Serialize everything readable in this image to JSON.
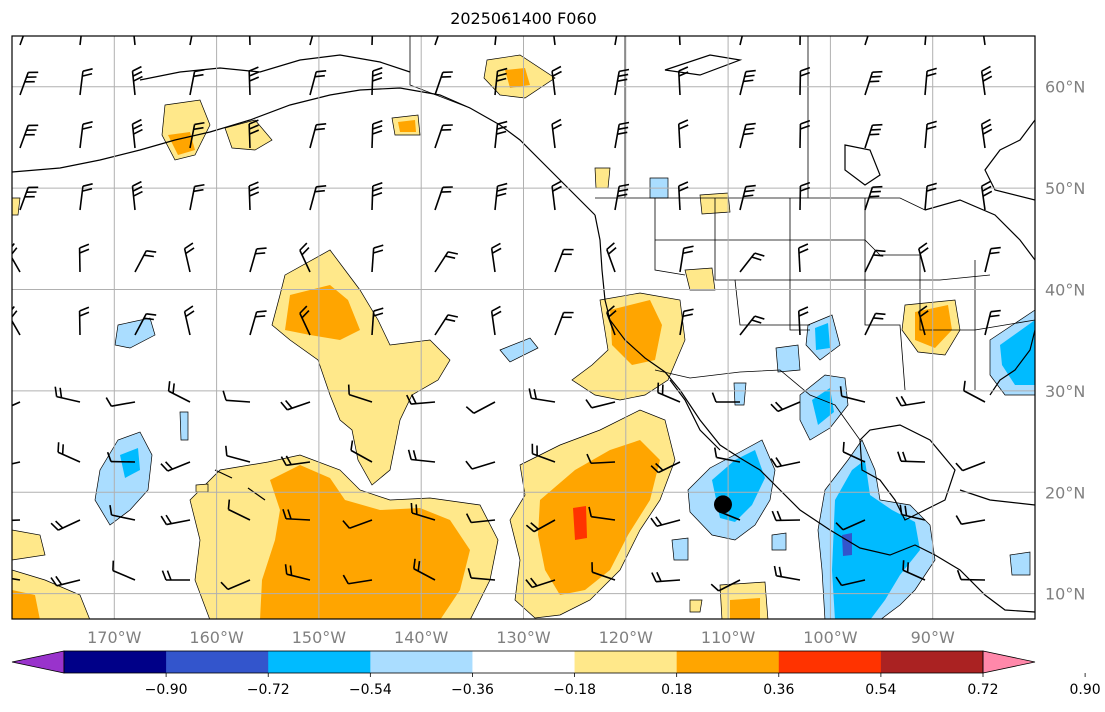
{
  "title": "2025061400 F060",
  "map": {
    "lon_range": [
      -180,
      -80
    ],
    "lat_range": [
      7.5,
      65
    ],
    "lon_tick_labels": [
      "170°W",
      "160°W",
      "150°W",
      "140°W",
      "130°W",
      "120°W",
      "110°W",
      "100°W",
      "90°W"
    ],
    "lon_tick_values": [
      -170,
      -160,
      -150,
      -140,
      -130,
      -120,
      -110,
      -100,
      -90
    ],
    "lat_tick_labels": [
      "10°N",
      "20°N",
      "30°N",
      "40°N",
      "50°N",
      "60°N"
    ],
    "lat_tick_values": [
      10,
      20,
      30,
      40,
      50,
      60
    ],
    "tick_label_color": "#808080",
    "gridlines": true,
    "marker": {
      "lon": -110.5,
      "lat": 18.8,
      "shape": "filled-circle",
      "color": "#000000"
    }
  },
  "colorbar": {
    "orientation": "horizontal",
    "extend": "both",
    "tick_labels": [
      "−0.90",
      "−0.72",
      "−0.54",
      "−0.36",
      "−0.18",
      "0.18",
      "0.36",
      "0.54",
      "0.72",
      "0.90"
    ],
    "colors": [
      "#9933cc",
      "#000088",
      "#3355cc",
      "#00bbff",
      "#aaddff",
      "#ffffff",
      "#ffe88a",
      "#ffa500",
      "#ff3300",
      "#aa2222",
      "#ff88aa"
    ]
  }
}
